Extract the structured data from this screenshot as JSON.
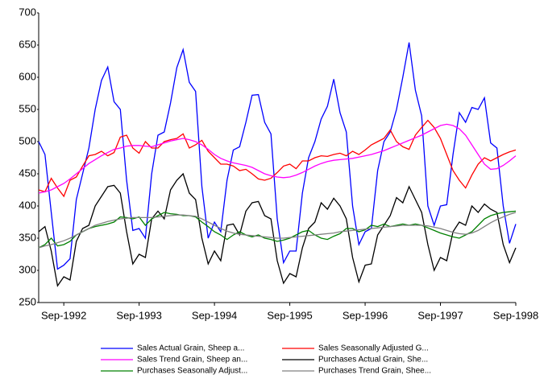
{
  "chart_data": {
    "type": "line",
    "categories": [
      null,
      null,
      null,
      null,
      "Sep-1992",
      null,
      null,
      null,
      null,
      null,
      null,
      null,
      null,
      null,
      null,
      null,
      "Sep-1993",
      null,
      null,
      null,
      null,
      null,
      null,
      null,
      null,
      null,
      null,
      null,
      "Sep-1994",
      null,
      null,
      null,
      null,
      null,
      null,
      null,
      null,
      null,
      null,
      null,
      "Sep-1995",
      null,
      null,
      null,
      null,
      null,
      null,
      null,
      null,
      null,
      null,
      null,
      "Sep-1996",
      null,
      null,
      null,
      null,
      null,
      null,
      null,
      null,
      null,
      null,
      null,
      "Sep-1997",
      null,
      null,
      null,
      null,
      null,
      null,
      null,
      null,
      null,
      null,
      null,
      "Sep-1998"
    ],
    "ylim": [
      250,
      700
    ],
    "yticks": [
      250,
      300,
      350,
      400,
      450,
      500,
      550,
      600,
      650,
      700
    ],
    "grid": false,
    "series": [
      {
        "name": "Sales Actual Grain, Sheep a...",
        "color": "#0000ff",
        "values": [
          500,
          480,
          390,
          302,
          308,
          318,
          410,
          450,
          490,
          550,
          595,
          616,
          562,
          550,
          440,
          362,
          365,
          350,
          450,
          510,
          515,
          560,
          615,
          643,
          592,
          578,
          430,
          350,
          375,
          360,
          440,
          487,
          492,
          530,
          572,
          573,
          530,
          512,
          380,
          312,
          330,
          330,
          420,
          475,
          500,
          535,
          555,
          597,
          545,
          515,
          400,
          340,
          360,
          365,
          455,
          500,
          515,
          550,
          600,
          654,
          580,
          540,
          400,
          370,
          400,
          402,
          480,
          545,
          530,
          553,
          550,
          568,
          498,
          490,
          400,
          342,
          372
        ]
      },
      {
        "name": "Sales Seasonally Adjusted G...",
        "color": "#ff0000",
        "values": [
          425,
          422,
          443,
          428,
          415,
          440,
          445,
          462,
          478,
          480,
          485,
          478,
          483,
          507,
          510,
          490,
          482,
          500,
          490,
          490,
          500,
          503,
          505,
          512,
          490,
          495,
          502,
          485,
          475,
          465,
          465,
          462,
          455,
          457,
          450,
          442,
          440,
          443,
          452,
          462,
          465,
          458,
          470,
          470,
          475,
          478,
          477,
          480,
          482,
          478,
          485,
          480,
          487,
          495,
          500,
          505,
          518,
          500,
          492,
          488,
          510,
          522,
          533,
          522,
          505,
          480,
          455,
          440,
          428,
          448,
          465,
          475,
          470,
          475,
          480,
          484,
          487
        ]
      },
      {
        "name": "Sales Trend Grain, Sheep an...",
        "color": "#ff00ff",
        "values": [
          420,
          422,
          425,
          430,
          435,
          442,
          450,
          458,
          466,
          472,
          478,
          483,
          488,
          490,
          493,
          494,
          494,
          493,
          492,
          495,
          498,
          501,
          503,
          505,
          503,
          500,
          495,
          488,
          480,
          474,
          470,
          467,
          465,
          463,
          460,
          455,
          450,
          447,
          445,
          444,
          445,
          448,
          452,
          457,
          462,
          466,
          469,
          471,
          472,
          473,
          474,
          476,
          478,
          480,
          483,
          486,
          490,
          494,
          498,
          502,
          506,
          510,
          515,
          520,
          525,
          527,
          525,
          520,
          510,
          495,
          480,
          465,
          457,
          458,
          463,
          470,
          478
        ]
      },
      {
        "name": "Purchases Actual Grain, She...",
        "color": "#000000",
        "values": [
          360,
          368,
          330,
          276,
          290,
          285,
          345,
          365,
          370,
          400,
          415,
          430,
          432,
          420,
          360,
          310,
          325,
          320,
          380,
          392,
          380,
          425,
          440,
          450,
          420,
          410,
          350,
          310,
          330,
          315,
          370,
          372,
          355,
          392,
          405,
          407,
          385,
          380,
          315,
          280,
          295,
          290,
          335,
          365,
          375,
          405,
          395,
          412,
          400,
          380,
          320,
          282,
          308,
          310,
          355,
          370,
          385,
          413,
          405,
          430,
          410,
          390,
          340,
          300,
          320,
          315,
          360,
          375,
          370,
          400,
          390,
          403,
          395,
          390,
          340,
          312,
          335
        ]
      },
      {
        "name": "Purchases Seasonally Adjust...",
        "color": "#008000",
        "values": [
          335,
          340,
          350,
          338,
          340,
          345,
          355,
          360,
          365,
          368,
          370,
          372,
          375,
          383,
          382,
          380,
          383,
          370,
          380,
          385,
          390,
          388,
          387,
          385,
          385,
          383,
          375,
          368,
          360,
          355,
          348,
          355,
          360,
          355,
          352,
          355,
          350,
          348,
          345,
          347,
          350,
          355,
          360,
          362,
          355,
          350,
          348,
          353,
          357,
          365,
          365,
          360,
          363,
          370,
          368,
          372,
          368,
          370,
          372,
          370,
          372,
          370,
          366,
          362,
          358,
          355,
          352,
          350,
          355,
          360,
          370,
          380,
          385,
          388,
          390,
          391,
          392
        ]
      },
      {
        "name": "Purchases Trend Grain, Shee...",
        "color": "#808080",
        "values": [
          335,
          338,
          340,
          343,
          346,
          350,
          355,
          360,
          365,
          370,
          373,
          376,
          378,
          380,
          381,
          382,
          382,
          382,
          382,
          383,
          384,
          385,
          386,
          386,
          385,
          384,
          380,
          375,
          370,
          365,
          361,
          358,
          356,
          355,
          354,
          353,
          352,
          351,
          350,
          350,
          351,
          352,
          353,
          354,
          355,
          356,
          357,
          358,
          360,
          361,
          362,
          363,
          364,
          365,
          366,
          367,
          368,
          369,
          370,
          370,
          370,
          370,
          369,
          367,
          365,
          362,
          359,
          357,
          356,
          358,
          362,
          368,
          374,
          379,
          383,
          387,
          390
        ]
      }
    ]
  }
}
